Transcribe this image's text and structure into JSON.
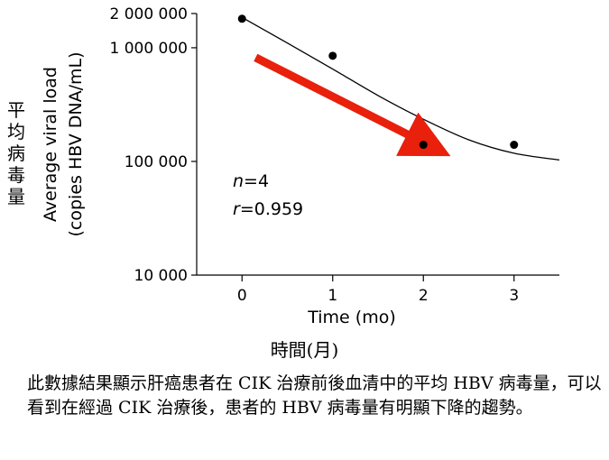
{
  "chart_data": {
    "type": "scatter",
    "x_ticks": [
      "0",
      "1",
      "2",
      "3"
    ],
    "y_ticks": [
      {
        "value": 10000,
        "label": "10 000"
      },
      {
        "value": 100000,
        "label": "100 000"
      },
      {
        "value": 1000000,
        "label": "1 000 000"
      },
      {
        "value": 2000000,
        "label": "2 000 000"
      }
    ],
    "xlim": [
      -0.5,
      3.5
    ],
    "ylim": [
      10000,
      2000000
    ],
    "yscale": "log",
    "xlabel": "Time (mo)",
    "ylabel_line1": "Average viral load",
    "ylabel_line2": "(copies HBV DNA/mL)",
    "points": [
      {
        "x": 0,
        "y": 1800000
      },
      {
        "x": 1,
        "y": 850000
      },
      {
        "x": 2,
        "y": 140000
      },
      {
        "x": 3,
        "y": 140000
      }
    ],
    "fit_curve": [
      {
        "x": 0,
        "y": 1850000
      },
      {
        "x": 0.5,
        "y": 1100000
      },
      {
        "x": 1,
        "y": 650000
      },
      {
        "x": 1.5,
        "y": 380000
      },
      {
        "x": 2,
        "y": 235000
      },
      {
        "x": 2.5,
        "y": 155000
      },
      {
        "x": 3,
        "y": 118000
      },
      {
        "x": 3.5,
        "y": 103000
      }
    ],
    "trend_arrow": {
      "from": {
        "x": 0.15,
        "y": 820000
      },
      "to": {
        "x": 2.2,
        "y": 120000
      },
      "color": "#e8200c"
    },
    "annotation_n": "=4",
    "annotation_r": "=0.959",
    "grid": false,
    "legend": "none"
  },
  "labels": {
    "ylabel_cn": [
      "平",
      "均",
      "病",
      "毒",
      "量"
    ],
    "xlabel_cn": "時間(月)",
    "caption": "此數據結果顯示肝癌患者在 CIK 治療前後血清中的平均 HBV 病毒量，可以看到在經過 CIK 治療後，患者的 HBV 病毒量有明顯下降的趨勢。"
  }
}
